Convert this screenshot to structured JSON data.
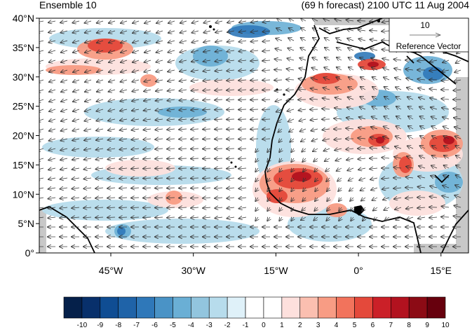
{
  "header": {
    "left_title": "Ensemble 10",
    "right_title": "(69 h forecast) 2100 UTC 11 Aug 2004"
  },
  "map": {
    "lon_range": [
      -58,
      20
    ],
    "lat_range": [
      0,
      40
    ],
    "lat_ticks": [
      {
        "value": 40,
        "label": "40°N"
      },
      {
        "value": 35,
        "label": "35°N"
      },
      {
        "value": 30,
        "label": "30°N"
      },
      {
        "value": 25,
        "label": "25°N"
      },
      {
        "value": 20,
        "label": "20°N"
      },
      {
        "value": 15,
        "label": "15°N"
      },
      {
        "value": 10,
        "label": "10°N"
      },
      {
        "value": 5,
        "label": "5°N"
      },
      {
        "value": 0,
        "label": "0°"
      }
    ],
    "lon_ticks": [
      {
        "value": -45,
        "label": "45°W"
      },
      {
        "value": -30,
        "label": "30°W"
      },
      {
        "value": -15,
        "label": "15°W"
      },
      {
        "value": 0,
        "label": "0°"
      },
      {
        "value": 15,
        "label": "15°E"
      }
    ],
    "reference_vector": {
      "magnitude": "10",
      "label": "Reference Vector"
    },
    "vector_color": "#333333",
    "coast_color": "#000000",
    "missing_color": "#c8c8c8"
  },
  "colorbar": {
    "labels": [
      "-10",
      "-9",
      "-8",
      "-7",
      "-6",
      "-5",
      "-4",
      "-3",
      "-2",
      "-1",
      "0",
      "1",
      "2",
      "3",
      "4",
      "5",
      "6",
      "7",
      "8",
      "9",
      "10"
    ],
    "colors": [
      "#05204a",
      "#08306b",
      "#0f4d93",
      "#1f63a8",
      "#2f78b9",
      "#4a93c6",
      "#6aafd5",
      "#92c5de",
      "#b7dcec",
      "#dff1f9",
      "#ffffff",
      "#ffffff",
      "#fde0dd",
      "#fbbfb0",
      "#f89c84",
      "#f2735c",
      "#e4493b",
      "#cb2028",
      "#b2121f",
      "#8c0b15",
      "#67000d"
    ]
  }
}
